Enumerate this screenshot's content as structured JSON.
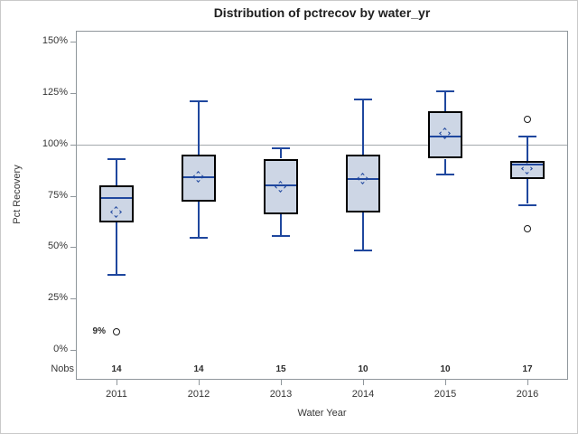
{
  "chart_data": {
    "type": "boxplot",
    "title": "Distribution of pctrecov by water_yr",
    "xlabel": "Water Year",
    "ylabel": "Pct Recovery",
    "nobs_label": "Nobs",
    "categories": [
      "2011",
      "2012",
      "2013",
      "2014",
      "2015",
      "2016"
    ],
    "nobs": [
      14,
      14,
      15,
      10,
      10,
      17
    ],
    "yticks": [
      0,
      25,
      50,
      75,
      100,
      125,
      150
    ],
    "ytick_suffix": "%",
    "ylim": [
      -14.5,
      155.3
    ],
    "reference_line": 100,
    "grid": "off",
    "series": [
      {
        "category": "2011",
        "low": 37,
        "q1": 62,
        "median": 74,
        "q3": 80,
        "high": 93,
        "mean": 67,
        "outliers": [
          {
            "value": 9,
            "label": "9%"
          }
        ]
      },
      {
        "category": "2012",
        "low": 55,
        "q1": 72,
        "median": 84,
        "q3": 95,
        "high": 121,
        "mean": 84,
        "outliers": []
      },
      {
        "category": "2013",
        "low": 56,
        "q1": 66,
        "median": 80,
        "q3": 93,
        "high": 98,
        "mean": 79,
        "outliers": []
      },
      {
        "category": "2014",
        "low": 49,
        "q1": 67,
        "median": 83,
        "q3": 95,
        "high": 122,
        "mean": 83,
        "outliers": []
      },
      {
        "category": "2015",
        "low": 86,
        "q1": 93,
        "median": 104,
        "q3": 116,
        "high": 126,
        "mean": 105,
        "outliers": []
      },
      {
        "category": "2016",
        "low": 71,
        "q1": 83,
        "median": 90,
        "q3": 92,
        "high": 104,
        "mean": 88,
        "outliers": [
          {
            "value": 112
          },
          {
            "value": 59
          }
        ]
      }
    ],
    "colors": {
      "box_fill": "#cdd6e5",
      "box_border": "#000000",
      "line": "#1f479e",
      "frame": "#8f969b",
      "reference": "#a4a9ad",
      "outlier": "#1a1a1a"
    }
  }
}
